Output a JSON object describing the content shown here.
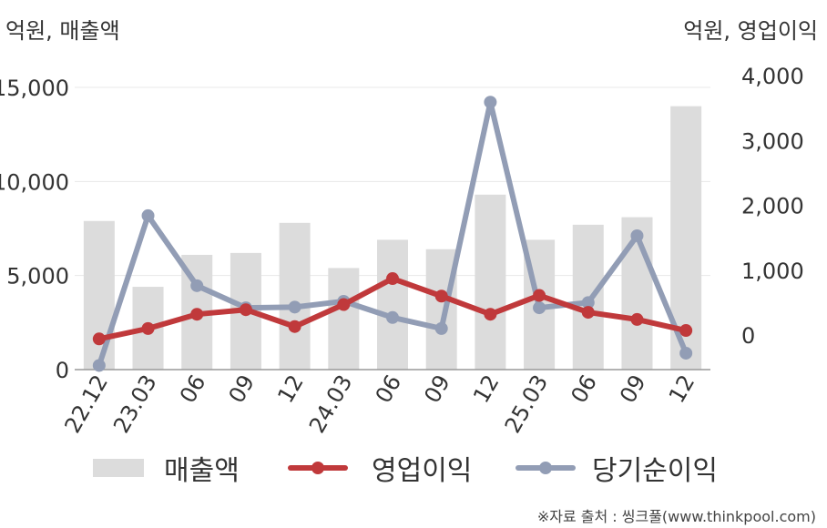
{
  "units": {
    "left": "억원, 매출액",
    "right": "억원, 영업이익"
  },
  "chart_data": {
    "type": "bar+line",
    "categories": [
      "22.12",
      "23.03",
      "06",
      "09",
      "12",
      "24.03",
      "06",
      "09",
      "12",
      "25.03",
      "06",
      "09",
      "12"
    ],
    "left_axis": {
      "ticks": [
        0,
        5000,
        10000,
        15000
      ],
      "tick_labels": [
        "0",
        "5,000",
        "10,000",
        "15,000"
      ],
      "ylim": [
        0,
        15000
      ]
    },
    "right_axis": {
      "ticks": [
        0,
        1000,
        2000,
        3000,
        4000
      ],
      "tick_labels": [
        "0",
        "1,000",
        "2,000",
        "3,000",
        "4,000"
      ],
      "ylim": [
        -530,
        4000
      ]
    },
    "series": [
      {
        "name": "매출액",
        "type": "bar",
        "axis": "left",
        "color": "#dcdcdc",
        "values": [
          7900,
          4400,
          6100,
          6200,
          7800,
          5400,
          6900,
          6400,
          9300,
          6900,
          7700,
          8100,
          14000
        ]
      },
      {
        "name": "영업이익",
        "type": "line",
        "axis": "right",
        "color": "#c0393b",
        "values": [
          -60,
          100,
          320,
          390,
          130,
          470,
          870,
          600,
          320,
          610,
          350,
          240,
          70
        ]
      },
      {
        "name": "당기순이익",
        "type": "line",
        "axis": "right",
        "color": "#929db5",
        "values": [
          -470,
          1840,
          760,
          420,
          430,
          520,
          270,
          100,
          3590,
          420,
          500,
          1530,
          -280
        ]
      }
    ],
    "grid": true,
    "legend_position": "bottom"
  },
  "source": "※자료 출처 : 씽크풀(www.thinkpool.com)"
}
